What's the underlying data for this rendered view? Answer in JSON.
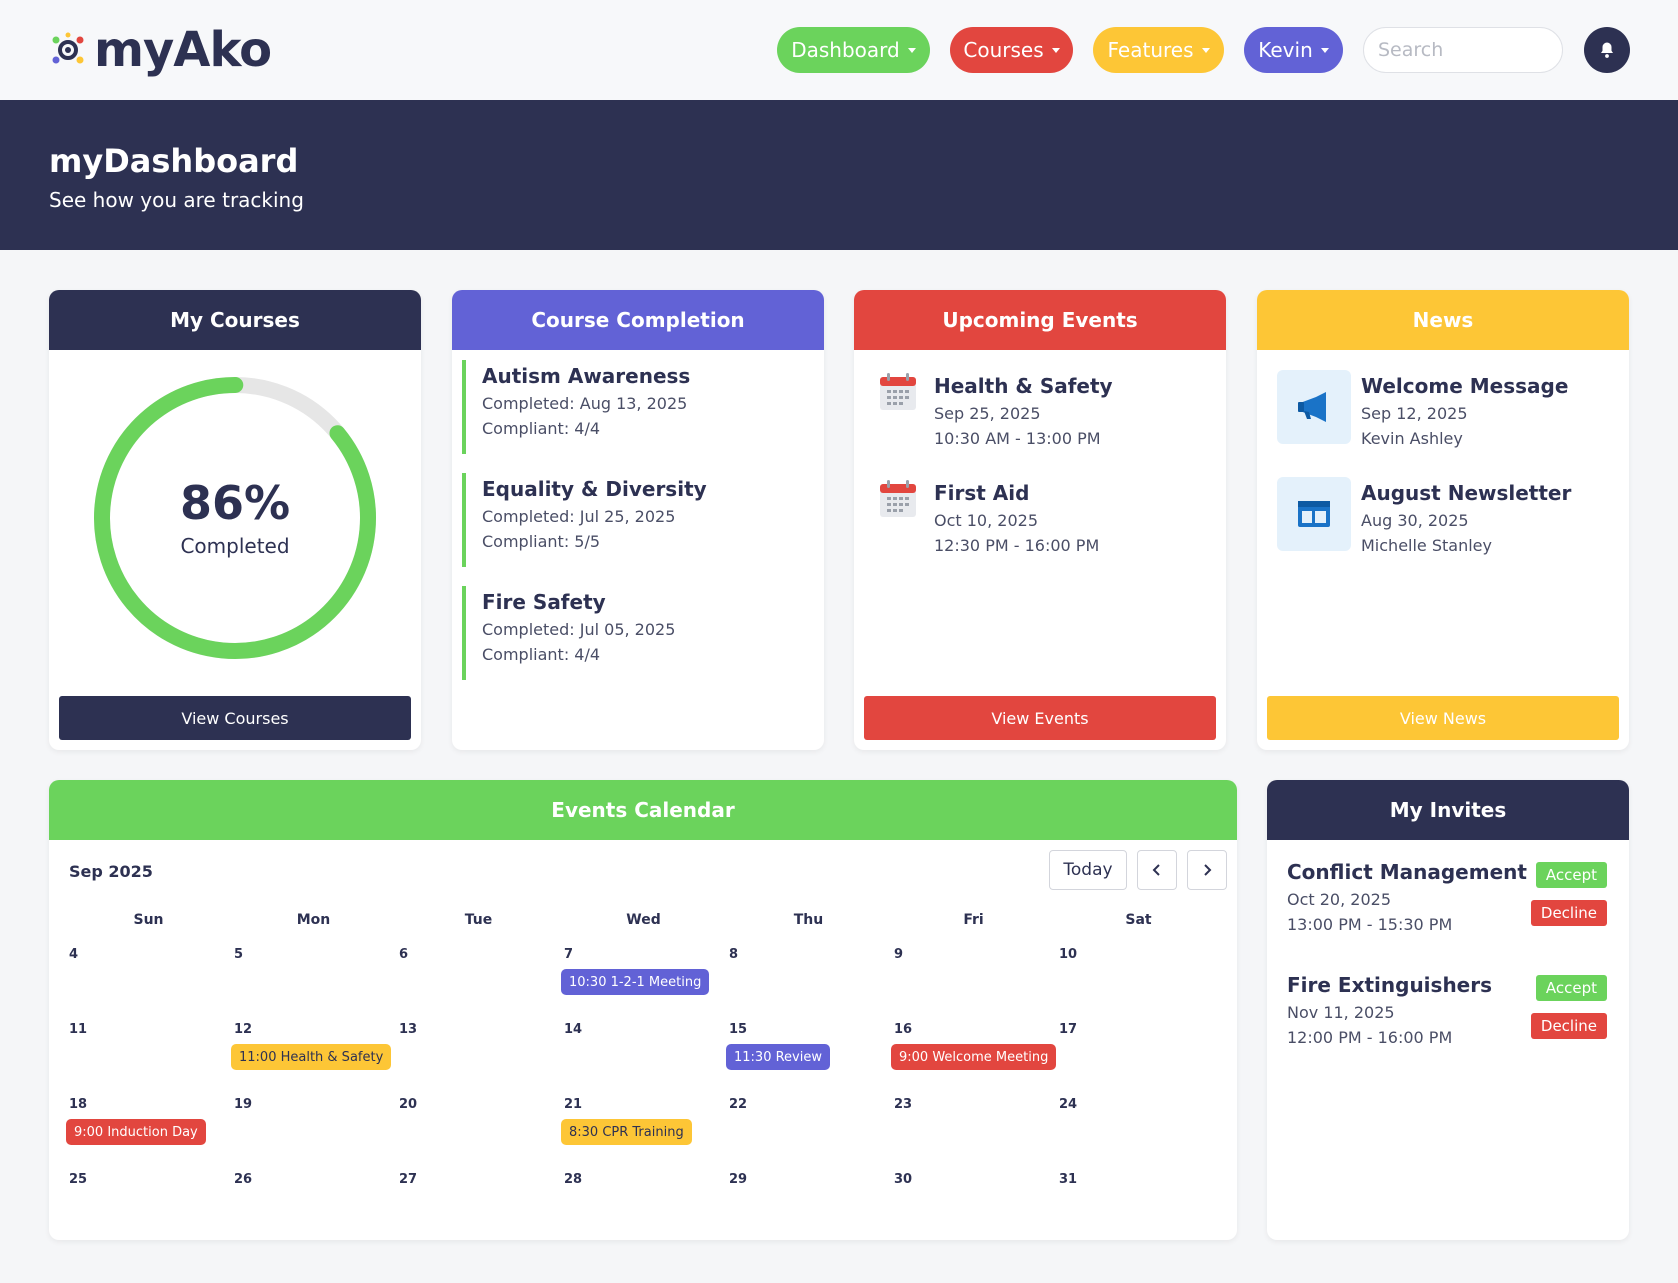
{
  "brand": {
    "name": "myAko",
    "colors": {
      "navy": "#2d3152",
      "green": "#6bd35c",
      "red": "#e2463f",
      "yellow": "#fdc636",
      "purple": "#6262d6"
    }
  },
  "nav": {
    "dashboard": "Dashboard",
    "courses": "Courses",
    "features": "Features",
    "user": "Kevin",
    "search_placeholder": "Search",
    "bell_icon": "bell-icon"
  },
  "banner": {
    "title": "myDashboard",
    "subtitle": "See how you are tracking"
  },
  "my_courses": {
    "title": "My Courses",
    "percent_text": "86%",
    "percent_value": 86,
    "label": "Completed",
    "button": "View Courses"
  },
  "course_completion": {
    "title": "Course Completion",
    "items": [
      {
        "name": "Autism Awareness",
        "completed": "Completed: Aug 13, 2025",
        "compliant": "Compliant: 4/4"
      },
      {
        "name": "Equality & Diversity",
        "completed": "Completed: Jul 25, 2025",
        "compliant": "Compliant: 5/5"
      },
      {
        "name": "Fire Safety",
        "completed": "Completed: Jul 05, 2025",
        "compliant": "Compliant: 4/4"
      }
    ]
  },
  "upcoming_events": {
    "title": "Upcoming Events",
    "items": [
      {
        "name": "Health & Safety",
        "date": "Sep 25, 2025",
        "time": "10:30 AM - 13:00 PM"
      },
      {
        "name": "First Aid",
        "date": "Oct 10, 2025",
        "time": "12:30 PM - 16:00 PM"
      }
    ],
    "button": "View Events"
  },
  "news": {
    "title": "News",
    "items": [
      {
        "name": "Welcome Message",
        "date": "Sep 12, 2025",
        "author": "Kevin Ashley",
        "icon": "megaphone-icon"
      },
      {
        "name": "August Newsletter",
        "date": "Aug 30, 2025",
        "author": "Michelle Stanley",
        "icon": "newsletter-icon"
      }
    ],
    "button": "View News"
  },
  "calendar": {
    "title": "Events Calendar",
    "month": "Sep 2025",
    "today": "Today",
    "days": [
      "Sun",
      "Mon",
      "Tue",
      "Wed",
      "Thu",
      "Fri",
      "Sat"
    ],
    "weeks": [
      [
        "4",
        "5",
        "6",
        "7",
        "8",
        "9",
        "10"
      ],
      [
        "11",
        "12",
        "13",
        "14",
        "15",
        "16",
        "17"
      ],
      [
        "18",
        "19",
        "20",
        "21",
        "22",
        "23",
        "24"
      ],
      [
        "25",
        "26",
        "27",
        "28",
        "29",
        "30",
        "31"
      ]
    ],
    "events": [
      {
        "label": "10:30 1-2-1 Meeting",
        "week": 0,
        "day": 3,
        "color": "#6262d6",
        "text": "#ffffff"
      },
      {
        "label": "11:00 Health & Safety",
        "week": 1,
        "day": 1,
        "color": "#fdc636",
        "text": "#2d3152"
      },
      {
        "label": "11:30 Review",
        "week": 1,
        "day": 4,
        "color": "#6262d6",
        "text": "#ffffff"
      },
      {
        "label": "9:00 Welcome Meeting",
        "week": 1,
        "day": 5,
        "color": "#e2463f",
        "text": "#ffffff"
      },
      {
        "label": "9:00 Induction Day",
        "week": 2,
        "day": 0,
        "color": "#e2463f",
        "text": "#ffffff"
      },
      {
        "label": "8:30 CPR Training",
        "week": 2,
        "day": 3,
        "color": "#fdc636",
        "text": "#2d3152"
      }
    ]
  },
  "invites": {
    "title": "My Invites",
    "items": [
      {
        "name": "Conflict Management",
        "date": "Oct 20, 2025",
        "time": "13:00 PM - 15:30 PM",
        "accept": "Accept",
        "decline": "Decline"
      },
      {
        "name": "Fire Extinguishers",
        "date": "Nov 11, 2025",
        "time": "12:00 PM - 16:00 PM",
        "accept": "Accept",
        "decline": "Decline"
      }
    ]
  }
}
